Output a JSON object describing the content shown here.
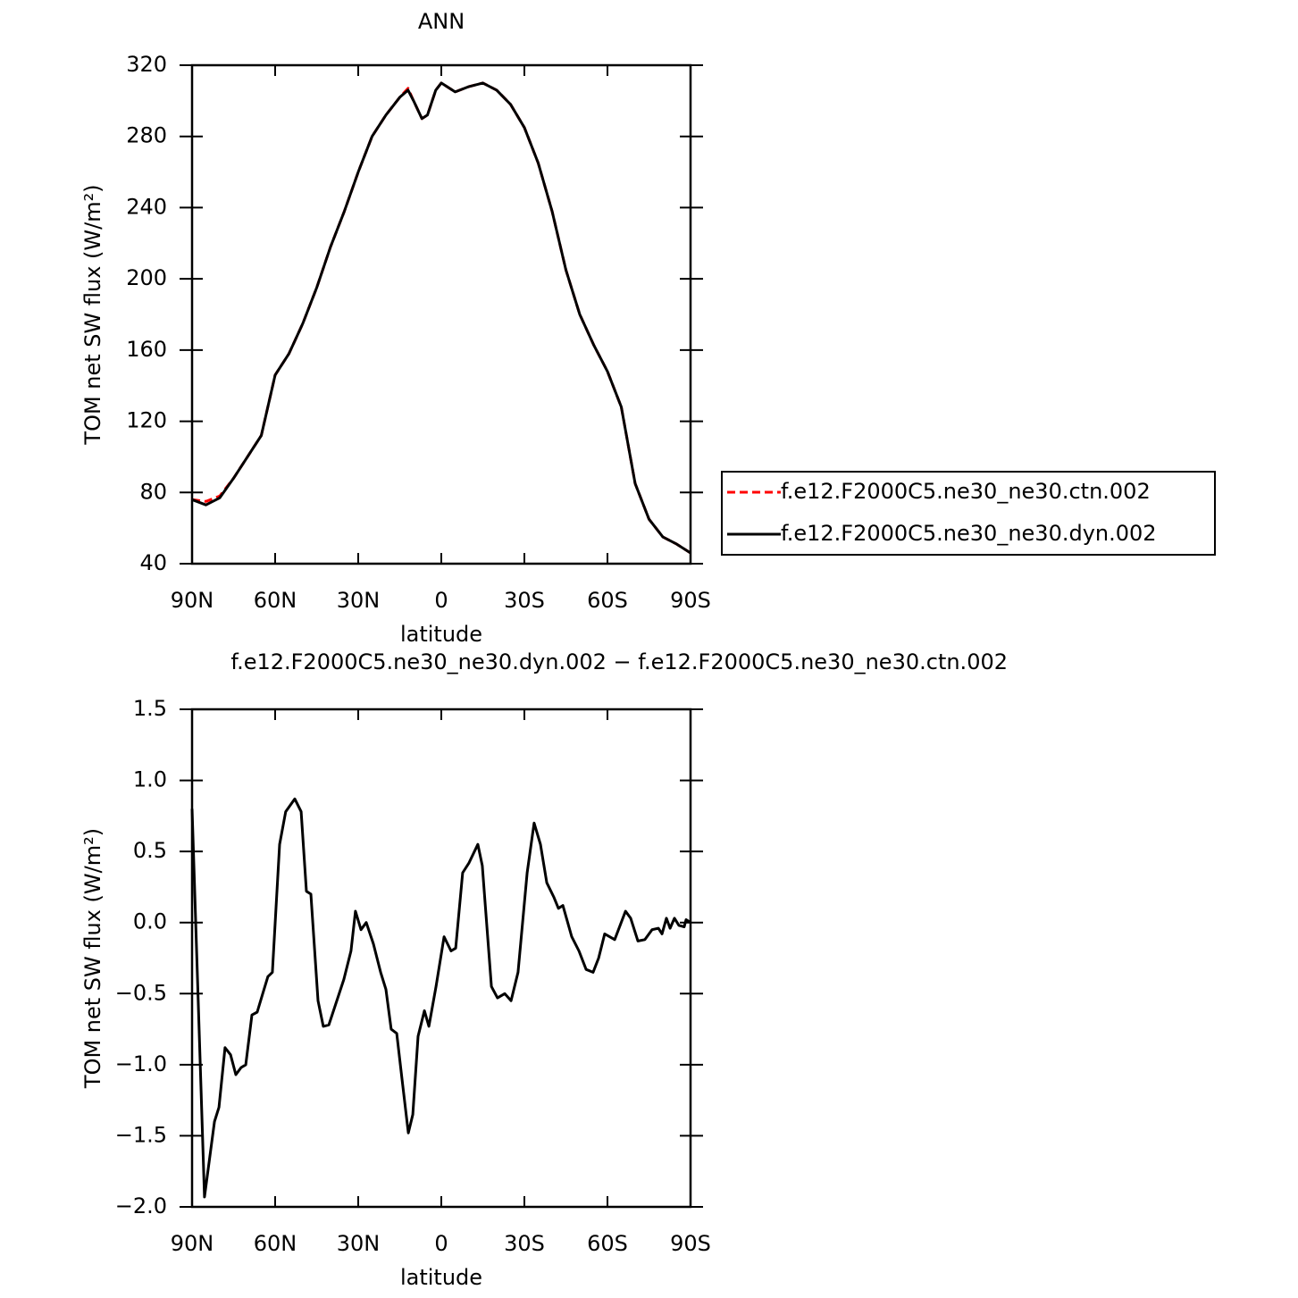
{
  "chart_data": [
    {
      "type": "line",
      "title": "ANN",
      "xlabel": "latitude",
      "ylabel": "TOM net SW flux (W/m²)",
      "x": [
        90,
        85,
        80,
        75,
        70,
        65,
        60,
        55,
        50,
        45,
        40,
        35,
        30,
        25,
        20,
        15,
        12,
        10,
        7,
        5,
        2,
        0,
        -5,
        -10,
        -15,
        -20,
        -25,
        -30,
        -35,
        -40,
        -45,
        -50,
        -55,
        -60,
        -65,
        -70,
        -75,
        -80,
        -85,
        -90
      ],
      "series": [
        {
          "name": "f.e12.F2000C5.ne30_ne30.ctn.002",
          "color": "#ff0000",
          "linestyle": "dashed",
          "values": [
            76,
            75,
            78,
            88,
            100,
            112,
            146,
            158,
            175,
            195,
            218,
            238,
            260,
            280,
            292,
            302,
            307,
            300,
            290,
            292,
            306,
            310,
            305,
            308,
            310,
            306,
            298,
            285,
            265,
            238,
            205,
            180,
            163,
            148,
            128,
            85,
            65,
            55,
            51,
            46
          ]
        },
        {
          "name": "f.e12.F2000C5.ne30_ne30.dyn.002",
          "color": "#000000",
          "linestyle": "solid",
          "values": [
            76,
            73,
            77,
            88,
            100,
            112,
            146,
            158,
            175,
            195,
            218,
            238,
            260,
            280,
            292,
            302,
            306,
            300,
            290,
            292,
            306,
            310,
            305,
            308,
            310,
            306,
            298,
            285,
            265,
            238,
            205,
            180,
            163,
            148,
            128,
            85,
            65,
            55,
            51,
            46
          ]
        }
      ],
      "xlim": [
        90,
        -90
      ],
      "xticks": [
        {
          "value": 90,
          "label": "90N"
        },
        {
          "value": 60,
          "label": "60N"
        },
        {
          "value": 30,
          "label": "30N"
        },
        0,
        {
          "value": -30,
          "label": "30S"
        },
        {
          "value": -60,
          "label": "60S"
        },
        {
          "value": -90,
          "label": "90S"
        }
      ],
      "ylim": [
        40,
        320
      ],
      "yticks": [
        40,
        80,
        120,
        160,
        200,
        240,
        280,
        320
      ],
      "legend": "right"
    },
    {
      "type": "line",
      "title": "f.e12.F2000C5.ne30_ne30.dyn.002 − f.e12.F2000C5.ne30_ne30.ctn.002",
      "xlabel": "latitude",
      "ylabel": "TOM net SW flux (W/m²)",
      "x": [
        90,
        85.5,
        81.9,
        80.3,
        78.1,
        76.1,
        74.2,
        72.3,
        70.6,
        68.4,
        66.5,
        64.5,
        62.6,
        61.0,
        58.4,
        56.2,
        52.9,
        50.6,
        48.7,
        47.1,
        44.5,
        42.6,
        40.6,
        35.2,
        32.6,
        31.0,
        29.0,
        27.1,
        24.5,
        21.9,
        20.0,
        18.1,
        16.1,
        14.2,
        11.9,
        10.3,
        8.4,
        6.1,
        4.5,
        1.9,
        -1.0,
        -3.5,
        -5.2,
        -7.7,
        -10.0,
        -13.2,
        -14.8,
        -18.1,
        -20.3,
        -22.9,
        -25.2,
        -27.7,
        -31.0,
        -33.5,
        -35.8,
        -38.1,
        -40.6,
        -42.3,
        -43.9,
        -47.1,
        -49.7,
        -52.3,
        -54.8,
        -56.8,
        -59.0,
        -62.6,
        -66.5,
        -68.4,
        -71.0,
        -73.5,
        -76.1,
        -78.4,
        -79.7,
        -81.3,
        -82.6,
        -84.2,
        -85.8,
        -87.7,
        -88.4,
        -90
      ],
      "series": [
        {
          "name": "difference",
          "color": "#000000",
          "linestyle": "solid",
          "values": [
            0.8,
            -1.93,
            -1.4,
            -1.3,
            -0.88,
            -0.93,
            -1.07,
            -1.02,
            -1.0,
            -0.65,
            -0.63,
            -0.5,
            -0.38,
            -0.35,
            0.55,
            0.78,
            0.87,
            0.78,
            0.22,
            0.2,
            -0.55,
            -0.73,
            -0.72,
            -0.4,
            -0.2,
            0.08,
            -0.05,
            0.0,
            -0.15,
            -0.35,
            -0.47,
            -0.75,
            -0.78,
            -1.1,
            -1.48,
            -1.35,
            -0.8,
            -0.62,
            -0.73,
            -0.45,
            -0.1,
            -0.2,
            -0.18,
            0.35,
            0.42,
            0.55,
            0.4,
            -0.45,
            -0.53,
            -0.5,
            -0.55,
            -0.35,
            0.35,
            0.7,
            0.55,
            0.28,
            0.18,
            0.1,
            0.12,
            -0.1,
            -0.2,
            -0.33,
            -0.35,
            -0.25,
            -0.08,
            -0.12,
            0.08,
            0.03,
            -0.13,
            -0.12,
            -0.05,
            -0.04,
            -0.08,
            0.03,
            -0.04,
            0.03,
            -0.02,
            -0.03,
            0.02,
            0.0
          ]
        }
      ],
      "xlim": [
        90,
        -90
      ],
      "xticks": [
        {
          "value": 90,
          "label": "90N"
        },
        {
          "value": 60,
          "label": "60N"
        },
        {
          "value": 30,
          "label": "30N"
        },
        0,
        {
          "value": -30,
          "label": "30S"
        },
        {
          "value": -60,
          "label": "60S"
        },
        {
          "value": -90,
          "label": "90S"
        }
      ],
      "ylim": [
        -2.0,
        1.5
      ],
      "yticks": [
        1.5,
        {
          "value": 1.0,
          "label": "1.0"
        },
        0.5,
        {
          "value": 0,
          "label": "0.0"
        },
        {
          "value": -0.5,
          "label": "−0.5"
        },
        {
          "value": -1.0,
          "label": "−1.0"
        },
        {
          "value": -1.5,
          "label": "−1.5"
        },
        {
          "value": -2.0,
          "label": "−2.0"
        }
      ]
    }
  ]
}
